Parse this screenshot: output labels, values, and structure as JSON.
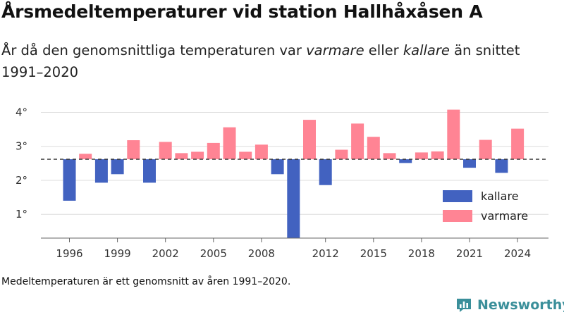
{
  "header": {
    "title": "Årsmedeltemperaturer vid station Hallhåxåsen A",
    "subtitle_part1": "År då den genomsnittliga temperaturen var ",
    "subtitle_warm": "varmare",
    "subtitle_part2": " eller ",
    "subtitle_cold": "kallare",
    "subtitle_part3": " än snittet 1991–2020"
  },
  "footnote": "Medeltemperaturen är ett genomsnitt av åren 1991–2020.",
  "brand": {
    "name": "Newsworthy",
    "icon": "newsworthy-logo-icon",
    "color": "#3a8f9a"
  },
  "chart_data": {
    "type": "bar",
    "baseline": 2.62,
    "ylim": [
      0.3,
      4.3
    ],
    "yticks": [
      1,
      2,
      3,
      4
    ],
    "ytick_labels": [
      "1°",
      "2°",
      "3°",
      "4°"
    ],
    "xticks": [
      1996,
      1999,
      2002,
      2005,
      2008,
      2012,
      2015,
      2018,
      2021,
      2024
    ],
    "grid": true,
    "legend_position": "right",
    "colors": {
      "kallare": "#4262c0",
      "varmare": "#ff8494"
    },
    "legend": [
      {
        "key": "kallare",
        "label": "kallare"
      },
      {
        "key": "varmare",
        "label": "varmare"
      }
    ],
    "years": [
      1996,
      1997,
      1998,
      1999,
      2000,
      2001,
      2002,
      2003,
      2004,
      2005,
      2006,
      2007,
      2008,
      2009,
      2010,
      2011,
      2012,
      2013,
      2014,
      2015,
      2016,
      2017,
      2018,
      2019,
      2020,
      2021,
      2022,
      2023,
      2024
    ],
    "values": [
      1.4,
      2.78,
      1.93,
      2.18,
      3.18,
      1.93,
      3.13,
      2.8,
      2.84,
      3.1,
      3.56,
      2.84,
      3.05,
      2.18,
      0.3,
      3.78,
      1.86,
      2.9,
      3.67,
      3.28,
      2.8,
      2.51,
      2.82,
      2.85,
      4.08,
      2.37,
      3.19,
      2.22,
      3.52
    ]
  }
}
